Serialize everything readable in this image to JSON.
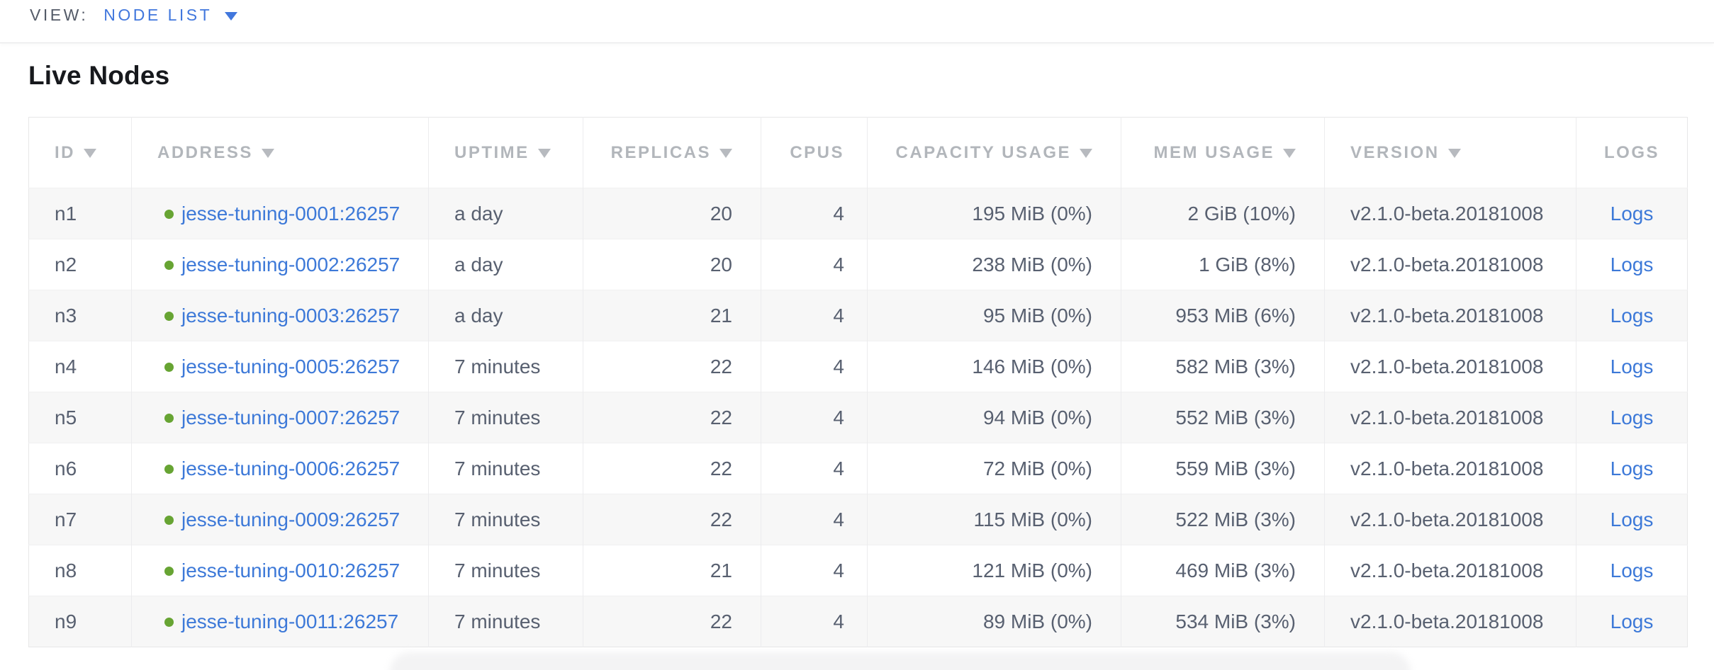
{
  "view_bar": {
    "label": "VIEW:",
    "selected": "NODE LIST"
  },
  "page": {
    "title": "Live Nodes"
  },
  "colors": {
    "link_blue": "#3d79d8",
    "selector_blue": "#4177dd",
    "live_status_green": "#67a433",
    "header_gray": "#b2b6bb",
    "cell_text": "#586070",
    "alt_row_bg": "#f7f7f7"
  },
  "table": {
    "columns": [
      {
        "key": "id",
        "label": "ID",
        "sortable": true,
        "align": "left"
      },
      {
        "key": "address",
        "label": "ADDRESS",
        "sortable": true,
        "align": "left"
      },
      {
        "key": "uptime",
        "label": "UPTIME",
        "sortable": true,
        "align": "left"
      },
      {
        "key": "replicas",
        "label": "REPLICAS",
        "sortable": true,
        "align": "right"
      },
      {
        "key": "cpus",
        "label": "CPUS",
        "sortable": false,
        "align": "right"
      },
      {
        "key": "capacity",
        "label": "CAPACITY USAGE",
        "sortable": true,
        "align": "right"
      },
      {
        "key": "mem",
        "label": "MEM USAGE",
        "sortable": true,
        "align": "right"
      },
      {
        "key": "version",
        "label": "VERSION",
        "sortable": true,
        "align": "left"
      },
      {
        "key": "logs",
        "label": "LOGS",
        "sortable": false,
        "align": "center"
      }
    ],
    "rows": [
      {
        "id": "n1",
        "status": "live",
        "address": "jesse-tuning-0001:26257",
        "uptime": "a day",
        "replicas": "20",
        "cpus": "4",
        "capacity": "195 MiB (0%)",
        "mem": "2 GiB (10%)",
        "version": "v2.1.0-beta.20181008",
        "logs": "Logs"
      },
      {
        "id": "n2",
        "status": "live",
        "address": "jesse-tuning-0002:26257",
        "uptime": "a day",
        "replicas": "20",
        "cpus": "4",
        "capacity": "238 MiB (0%)",
        "mem": "1 GiB (8%)",
        "version": "v2.1.0-beta.20181008",
        "logs": "Logs"
      },
      {
        "id": "n3",
        "status": "live",
        "address": "jesse-tuning-0003:26257",
        "uptime": "a day",
        "replicas": "21",
        "cpus": "4",
        "capacity": "95 MiB (0%)",
        "mem": "953 MiB (6%)",
        "version": "v2.1.0-beta.20181008",
        "logs": "Logs"
      },
      {
        "id": "n4",
        "status": "live",
        "address": "jesse-tuning-0005:26257",
        "uptime": "7 minutes",
        "replicas": "22",
        "cpus": "4",
        "capacity": "146 MiB (0%)",
        "mem": "582 MiB (3%)",
        "version": "v2.1.0-beta.20181008",
        "logs": "Logs"
      },
      {
        "id": "n5",
        "status": "live",
        "address": "jesse-tuning-0007:26257",
        "uptime": "7 minutes",
        "replicas": "22",
        "cpus": "4",
        "capacity": "94 MiB (0%)",
        "mem": "552 MiB (3%)",
        "version": "v2.1.0-beta.20181008",
        "logs": "Logs"
      },
      {
        "id": "n6",
        "status": "live",
        "address": "jesse-tuning-0006:26257",
        "uptime": "7 minutes",
        "replicas": "22",
        "cpus": "4",
        "capacity": "72 MiB (0%)",
        "mem": "559 MiB (3%)",
        "version": "v2.1.0-beta.20181008",
        "logs": "Logs"
      },
      {
        "id": "n7",
        "status": "live",
        "address": "jesse-tuning-0009:26257",
        "uptime": "7 minutes",
        "replicas": "22",
        "cpus": "4",
        "capacity": "115 MiB (0%)",
        "mem": "522 MiB (3%)",
        "version": "v2.1.0-beta.20181008",
        "logs": "Logs"
      },
      {
        "id": "n8",
        "status": "live",
        "address": "jesse-tuning-0010:26257",
        "uptime": "7 minutes",
        "replicas": "21",
        "cpus": "4",
        "capacity": "121 MiB (0%)",
        "mem": "469 MiB (3%)",
        "version": "v2.1.0-beta.20181008",
        "logs": "Logs"
      },
      {
        "id": "n9",
        "status": "live",
        "address": "jesse-tuning-0011:26257",
        "uptime": "7 minutes",
        "replicas": "22",
        "cpus": "4",
        "capacity": "89 MiB (0%)",
        "mem": "534 MiB (3%)",
        "version": "v2.1.0-beta.20181008",
        "logs": "Logs"
      }
    ]
  }
}
